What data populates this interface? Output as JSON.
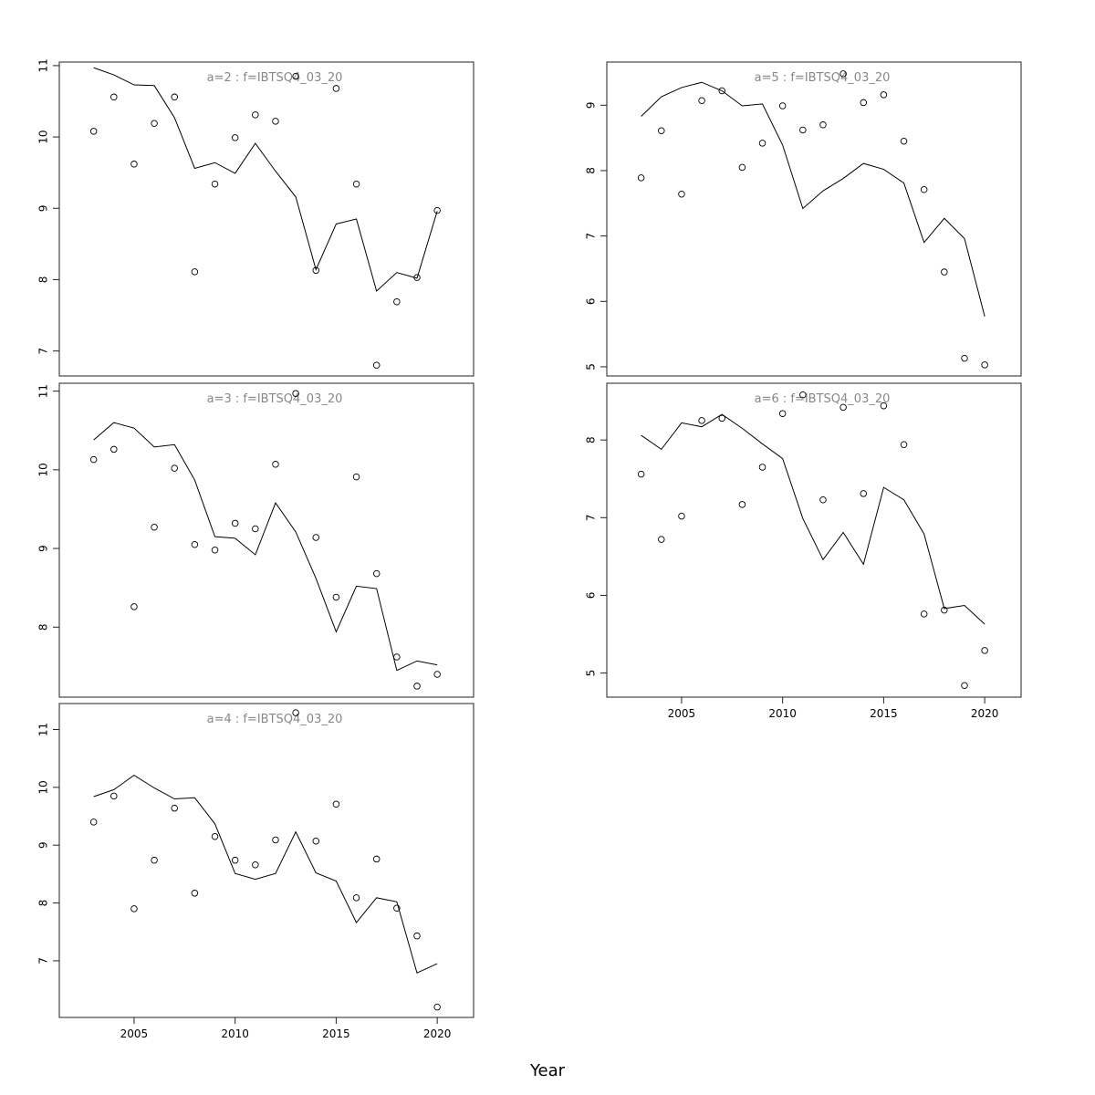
{
  "xlabel": "Year",
  "colors": {
    "title": "#888888",
    "line": "#000000",
    "points": "#000000"
  },
  "chart_data": [
    {
      "type": "scatter",
      "title": "a=2 : f=IBTSQ4_03_20",
      "xlim": [
        2001.3,
        2021.8
      ],
      "ylim": [
        6.65,
        11.05
      ],
      "yticks": [
        7,
        8,
        9,
        10,
        11
      ],
      "xticks": [],
      "series": [
        {
          "kind": "points",
          "x": [
            2003,
            2004,
            2005,
            2006,
            2007,
            2008,
            2009,
            2010,
            2011,
            2012,
            2013,
            2014,
            2015,
            2016,
            2017,
            2018,
            2019,
            2020
          ],
          "y": [
            10.08,
            10.56,
            9.62,
            10.19,
            10.56,
            8.11,
            9.34,
            9.99,
            10.31,
            10.22,
            10.85,
            8.13,
            10.68,
            9.34,
            6.8,
            7.69,
            8.03,
            8.97
          ]
        },
        {
          "kind": "line",
          "x": [
            2003,
            2004,
            2005,
            2006,
            2007,
            2008,
            2009,
            2010,
            2011,
            2012,
            2013,
            2014,
            2015,
            2016,
            2017,
            2018,
            2019,
            2020
          ],
          "y": [
            10.97,
            10.87,
            10.73,
            10.72,
            10.27,
            9.56,
            9.64,
            9.49,
            9.91,
            9.52,
            9.16,
            8.14,
            8.78,
            8.85,
            7.84,
            8.1,
            8.02,
            8.96
          ]
        }
      ]
    },
    {
      "type": "scatter",
      "title": "a=3 : f=IBTSQ4_03_20",
      "xlim": [
        2001.3,
        2021.8
      ],
      "ylim": [
        7.11,
        11.1
      ],
      "yticks": [
        8,
        9,
        10,
        11
      ],
      "xticks": [],
      "series": [
        {
          "kind": "points",
          "x": [
            2003,
            2004,
            2005,
            2006,
            2007,
            2008,
            2009,
            2010,
            2011,
            2012,
            2013,
            2014,
            2015,
            2016,
            2017,
            2018,
            2019,
            2020
          ],
          "y": [
            10.13,
            10.26,
            8.26,
            9.27,
            10.02,
            9.05,
            8.98,
            9.32,
            9.25,
            10.07,
            10.97,
            9.14,
            8.38,
            9.91,
            8.68,
            7.62,
            7.25,
            7.4
          ]
        },
        {
          "kind": "line",
          "x": [
            2003,
            2004,
            2005,
            2006,
            2007,
            2008,
            2009,
            2010,
            2011,
            2012,
            2013,
            2014,
            2015,
            2016,
            2017,
            2018,
            2019,
            2020
          ],
          "y": [
            10.38,
            10.6,
            10.53,
            10.29,
            10.32,
            9.87,
            9.15,
            9.13,
            8.92,
            9.58,
            9.21,
            8.62,
            7.94,
            8.52,
            8.49,
            7.45,
            7.57,
            7.52
          ]
        }
      ]
    },
    {
      "type": "scatter",
      "title": "a=4 : f=IBTSQ4_03_20",
      "xlim": [
        2001.3,
        2021.8
      ],
      "ylim": [
        6.02,
        11.45
      ],
      "yticks": [
        7,
        8,
        9,
        10,
        11
      ],
      "xticks": [
        2005,
        2010,
        2015,
        2020
      ],
      "series": [
        {
          "kind": "points",
          "x": [
            2003,
            2004,
            2005,
            2006,
            2007,
            2008,
            2009,
            2010,
            2011,
            2012,
            2013,
            2014,
            2015,
            2016,
            2017,
            2018,
            2019,
            2020
          ],
          "y": [
            9.4,
            9.85,
            7.9,
            8.74,
            9.64,
            8.17,
            9.15,
            8.74,
            8.66,
            9.09,
            11.29,
            9.07,
            9.71,
            8.09,
            8.76,
            7.91,
            7.43,
            6.2
          ]
        },
        {
          "kind": "line",
          "x": [
            2003,
            2004,
            2005,
            2006,
            2007,
            2008,
            2009,
            2010,
            2011,
            2012,
            2013,
            2014,
            2015,
            2016,
            2017,
            2018,
            2019,
            2020
          ],
          "y": [
            9.84,
            9.96,
            10.21,
            9.99,
            9.8,
            9.82,
            9.37,
            8.51,
            8.41,
            8.51,
            9.23,
            8.52,
            8.38,
            7.66,
            8.09,
            8.02,
            6.79,
            6.95
          ]
        }
      ]
    },
    {
      "type": "scatter",
      "title": "a=5 : f=IBTSQ4_03_20",
      "xlim": [
        2001.3,
        2021.8
      ],
      "ylim": [
        4.86,
        9.66
      ],
      "yticks": [
        5,
        6,
        7,
        8,
        9
      ],
      "xticks": [],
      "series": [
        {
          "kind": "points",
          "x": [
            2003,
            2004,
            2005,
            2006,
            2007,
            2008,
            2009,
            2010,
            2011,
            2012,
            2013,
            2014,
            2015,
            2016,
            2017,
            2018,
            2019,
            2020
          ],
          "y": [
            7.89,
            8.61,
            7.64,
            9.07,
            9.22,
            8.05,
            8.42,
            8.99,
            8.62,
            8.7,
            9.48,
            9.04,
            9.16,
            8.45,
            7.71,
            6.45,
            5.13,
            5.03
          ]
        },
        {
          "kind": "line",
          "x": [
            2003,
            2004,
            2005,
            2006,
            2007,
            2008,
            2009,
            2010,
            2011,
            2012,
            2013,
            2014,
            2015,
            2016,
            2017,
            2018,
            2019,
            2020
          ],
          "y": [
            8.83,
            9.13,
            9.27,
            9.35,
            9.22,
            8.99,
            9.02,
            8.39,
            7.42,
            7.69,
            7.88,
            8.11,
            8.02,
            7.81,
            6.9,
            7.27,
            6.96,
            5.77
          ]
        }
      ]
    },
    {
      "type": "scatter",
      "title": "a=6 : f=IBTSQ4_03_20",
      "xlim": [
        2001.3,
        2021.8
      ],
      "ylim": [
        4.69,
        8.73
      ],
      "yticks": [
        5,
        6,
        7,
        8
      ],
      "xticks": [
        2005,
        2010,
        2015,
        2020
      ],
      "series": [
        {
          "kind": "points",
          "x": [
            2003,
            2004,
            2005,
            2006,
            2007,
            2008,
            2009,
            2010,
            2011,
            2012,
            2013,
            2014,
            2015,
            2016,
            2017,
            2018,
            2019,
            2020
          ],
          "y": [
            7.56,
            6.72,
            7.02,
            8.25,
            8.28,
            7.17,
            7.65,
            8.34,
            8.58,
            7.23,
            8.42,
            7.31,
            8.44,
            7.94,
            5.76,
            5.81,
            4.84,
            5.29
          ]
        },
        {
          "kind": "line",
          "x": [
            2003,
            2004,
            2005,
            2006,
            2007,
            2008,
            2009,
            2010,
            2011,
            2012,
            2013,
            2014,
            2015,
            2016,
            2017,
            2018,
            2019,
            2020
          ],
          "y": [
            8.06,
            7.88,
            8.22,
            8.17,
            8.33,
            8.15,
            7.95,
            7.76,
            6.99,
            6.46,
            6.81,
            6.4,
            7.39,
            7.23,
            6.79,
            5.83,
            5.87,
            5.63
          ]
        }
      ]
    }
  ]
}
